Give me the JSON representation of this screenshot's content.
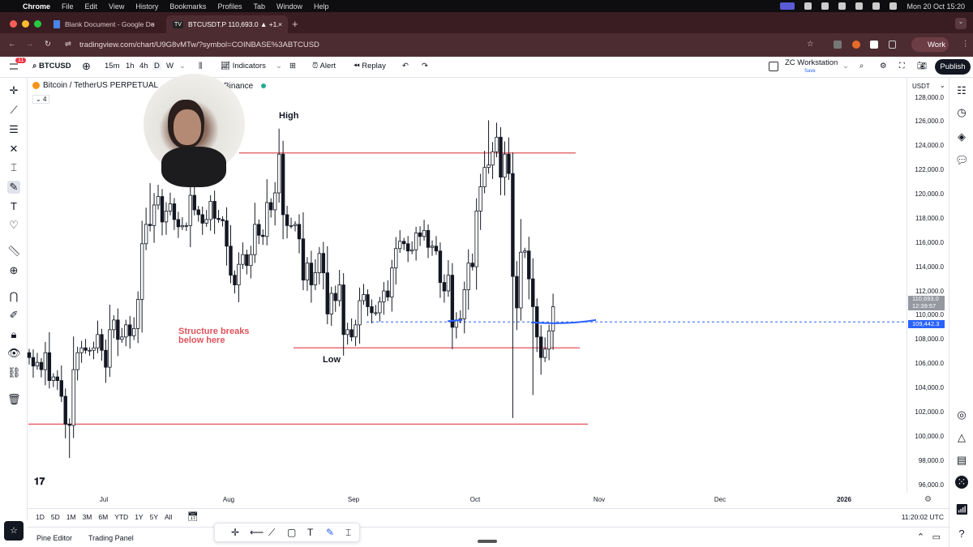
{
  "os_menubar": {
    "app": "Chrome",
    "items": [
      "File",
      "Edit",
      "View",
      "History",
      "Bookmarks",
      "Profiles",
      "Tab",
      "Window",
      "Help"
    ],
    "clock": "Mon 20 Oct  15:20"
  },
  "browser": {
    "tabs": [
      {
        "label": "Blank Document - Google Do",
        "active": false
      },
      {
        "label": "BTCUSDT.P 110,693.0 ▲ +1.",
        "active": true
      }
    ],
    "url": "tradingview.com/chart/U9G8vMTw/?symbol=COINBASE%3ABTCUSD",
    "profile": "Work"
  },
  "toolbar": {
    "notif_count": "11",
    "symbol": "BTCUSD",
    "intervals": [
      "15m",
      "1h",
      "4h",
      "D",
      "W"
    ],
    "active_interval": "D",
    "indicators": "Indicators",
    "alert": "Alert",
    "replay": "Replay",
    "layout_name": "ZC Workstation",
    "save": "Save",
    "publish": "Publish"
  },
  "legend": {
    "title": "Bitcoin / TetherUS PERPETUAL",
    "exchange": "Binance",
    "collapsed_count": "4"
  },
  "price_axis": {
    "currency": "USDT",
    "labels": [
      "128,000.0",
      "126,000.0",
      "124,000.0",
      "122,000.0",
      "120,000.0",
      "118,000.0",
      "116,000.0",
      "114,000.0",
      "112,000.0",
      "110,000.0",
      "108,000.0",
      "106,000.0",
      "104,000.0",
      "102,000.0",
      "100,000.0",
      "98,000.0",
      "96,000.0"
    ],
    "last_price": "110,693.0",
    "countdown": "12:39:57",
    "line_price": "109,442.3"
  },
  "time_axis": {
    "labels": [
      "Jul",
      "Aug",
      "Sep",
      "Oct",
      "Nov",
      "Dec",
      "2026"
    ]
  },
  "annotations": {
    "high": "High",
    "low": "Low",
    "structure": [
      "Structure breaks",
      "below here"
    ]
  },
  "colors": {
    "up": "#ffffff",
    "down": "#131722",
    "level_line": "#e0535a",
    "price_line": "#2962ff",
    "note_red": "#e0535a"
  },
  "chart_data": {
    "type": "candlestick",
    "start_date": "2025-06-12",
    "unit": "USDT (thousands)",
    "closes": [
      106.5,
      105.8,
      106.1,
      105.5,
      106.9,
      104.6,
      104.9,
      104.6,
      103.3,
      101.0,
      100.9,
      105.5,
      106.9,
      107.3,
      107.1,
      107.1,
      107.3,
      108.4,
      107.1,
      105.7,
      108.8,
      109.6,
      108.0,
      108.2,
      109.2,
      108.3,
      108.9,
      111.3,
      115.9,
      117.5,
      117.4,
      119.1,
      119.8,
      117.7,
      118.6,
      119.2,
      117.9,
      117.3,
      117.4,
      117.4,
      119.9,
      118.7,
      118.3,
      117.6,
      117.9,
      119.4,
      118.0,
      117.9,
      117.8,
      115.7,
      113.3,
      112.5,
      114.2,
      115.0,
      114.1,
      115.0,
      117.5,
      116.6,
      116.5,
      119.3,
      118.7,
      120.1,
      123.3,
      118.3,
      117.4,
      117.4,
      117.5,
      116.3,
      112.9,
      114.3,
      112.5,
      113.5,
      115.1,
      113.5,
      110.1,
      111.8,
      111.2,
      112.5,
      108.4,
      108.8,
      108.2,
      109.2,
      111.2,
      111.7,
      110.7,
      110.2,
      110.2,
      111.1,
      112.0,
      111.5,
      113.9,
      115.5,
      116.1,
      115.9,
      115.3,
      115.4,
      116.8,
      116.5,
      117.0,
      115.6,
      115.7,
      115.3,
      112.7,
      112.0,
      113.3,
      109.0,
      109.6,
      109.7,
      112.1,
      114.3,
      114.0,
      118.6,
      120.6,
      122.2,
      122.4,
      123.5,
      124.7,
      121.4,
      123.3,
      121.7,
      113.2,
      110.6,
      115.2,
      115.3,
      113.0,
      110.7,
      108.2,
      106.5,
      107.2,
      108.7,
      110.7
    ],
    "low_overrides": {
      "10": 98.2,
      "120": 101.5,
      "125": 103.4
    },
    "high_overrides": {
      "63": 124.4,
      "114": 126.1,
      "30": 120.9
    },
    "levels": [
      123.4,
      107.3,
      101.0
    ],
    "price_line": 109.4423,
    "ylim": [
      96,
      128
    ]
  },
  "range_buttons": [
    "1D",
    "5D",
    "1M",
    "3M",
    "6M",
    "YTD",
    "1Y",
    "5Y",
    "All"
  ],
  "clock_utc": "11:20:02 UTC",
  "footer": {
    "pine": "Pine Editor",
    "trading": "Trading Panel"
  }
}
